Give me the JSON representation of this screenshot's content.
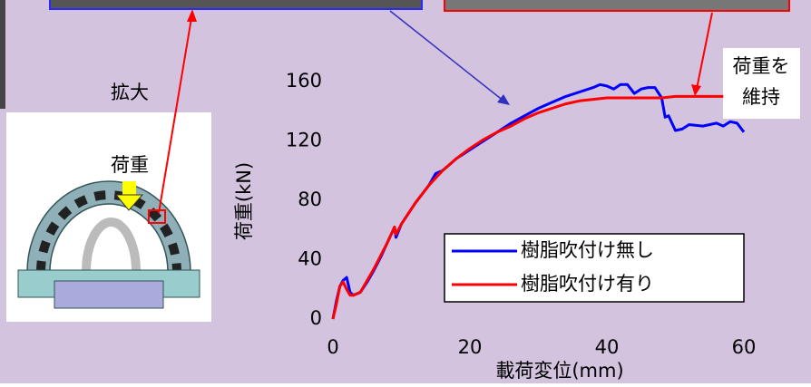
{
  "chart_data": {
    "type": "line",
    "xlabel": "載荷変位(mm)",
    "ylabel": "荷重(kN)",
    "annotations": [
      "拡大",
      "荷重",
      "荷重を",
      "維持"
    ],
    "xlim": [
      0,
      60
    ],
    "xticks": [
      0,
      20,
      40,
      60
    ],
    "ylim": [
      0,
      160
    ],
    "yticks": [
      0,
      40,
      80,
      120,
      160
    ],
    "legend": "lower right",
    "series": [
      {
        "name": "樹脂吹付け無し",
        "color": "#0000ff",
        "x": [
          0,
          0.5,
          1,
          1.5,
          2,
          2.5,
          3,
          4,
          5,
          6,
          7,
          8,
          9,
          9.2,
          10,
          12,
          14,
          15,
          16,
          17,
          18,
          20,
          22,
          24,
          26,
          28,
          30,
          32,
          34,
          36,
          38,
          39,
          40,
          41,
          42,
          43,
          44,
          45,
          46,
          47,
          48,
          48.5,
          49,
          50,
          51,
          52,
          54,
          56,
          57,
          58,
          59,
          60
        ],
        "values": [
          0,
          12,
          22,
          26,
          28,
          18,
          16,
          18,
          25,
          33,
          42,
          52,
          62,
          55,
          64,
          78,
          90,
          98,
          100,
          104,
          108,
          114,
          120,
          126,
          132,
          137,
          142,
          146,
          150,
          153,
          156,
          158,
          157,
          155,
          158,
          158,
          152,
          155,
          156,
          156,
          149,
          136,
          137,
          127,
          128,
          131,
          130,
          132,
          130,
          133,
          132,
          126
        ]
      },
      {
        "name": "樹脂吹付け有り",
        "color": "#ff0000",
        "x": [
          0,
          0.5,
          1,
          1.5,
          2,
          2.5,
          3,
          4,
          5,
          6,
          7,
          8,
          9,
          9.2,
          10,
          12,
          14,
          16,
          18,
          20,
          22,
          24,
          26,
          28,
          30,
          32,
          34,
          36,
          38,
          40,
          42,
          45,
          48,
          50,
          52,
          55,
          57
        ],
        "values": [
          0,
          10,
          22,
          25,
          20,
          16,
          16,
          18,
          26,
          34,
          43,
          52,
          62,
          57,
          64,
          78,
          90,
          100,
          108,
          115,
          121,
          126,
          130,
          135,
          139,
          142,
          145,
          147,
          148,
          149,
          149,
          149,
          149,
          150,
          150,
          150,
          150
        ]
      }
    ]
  }
}
